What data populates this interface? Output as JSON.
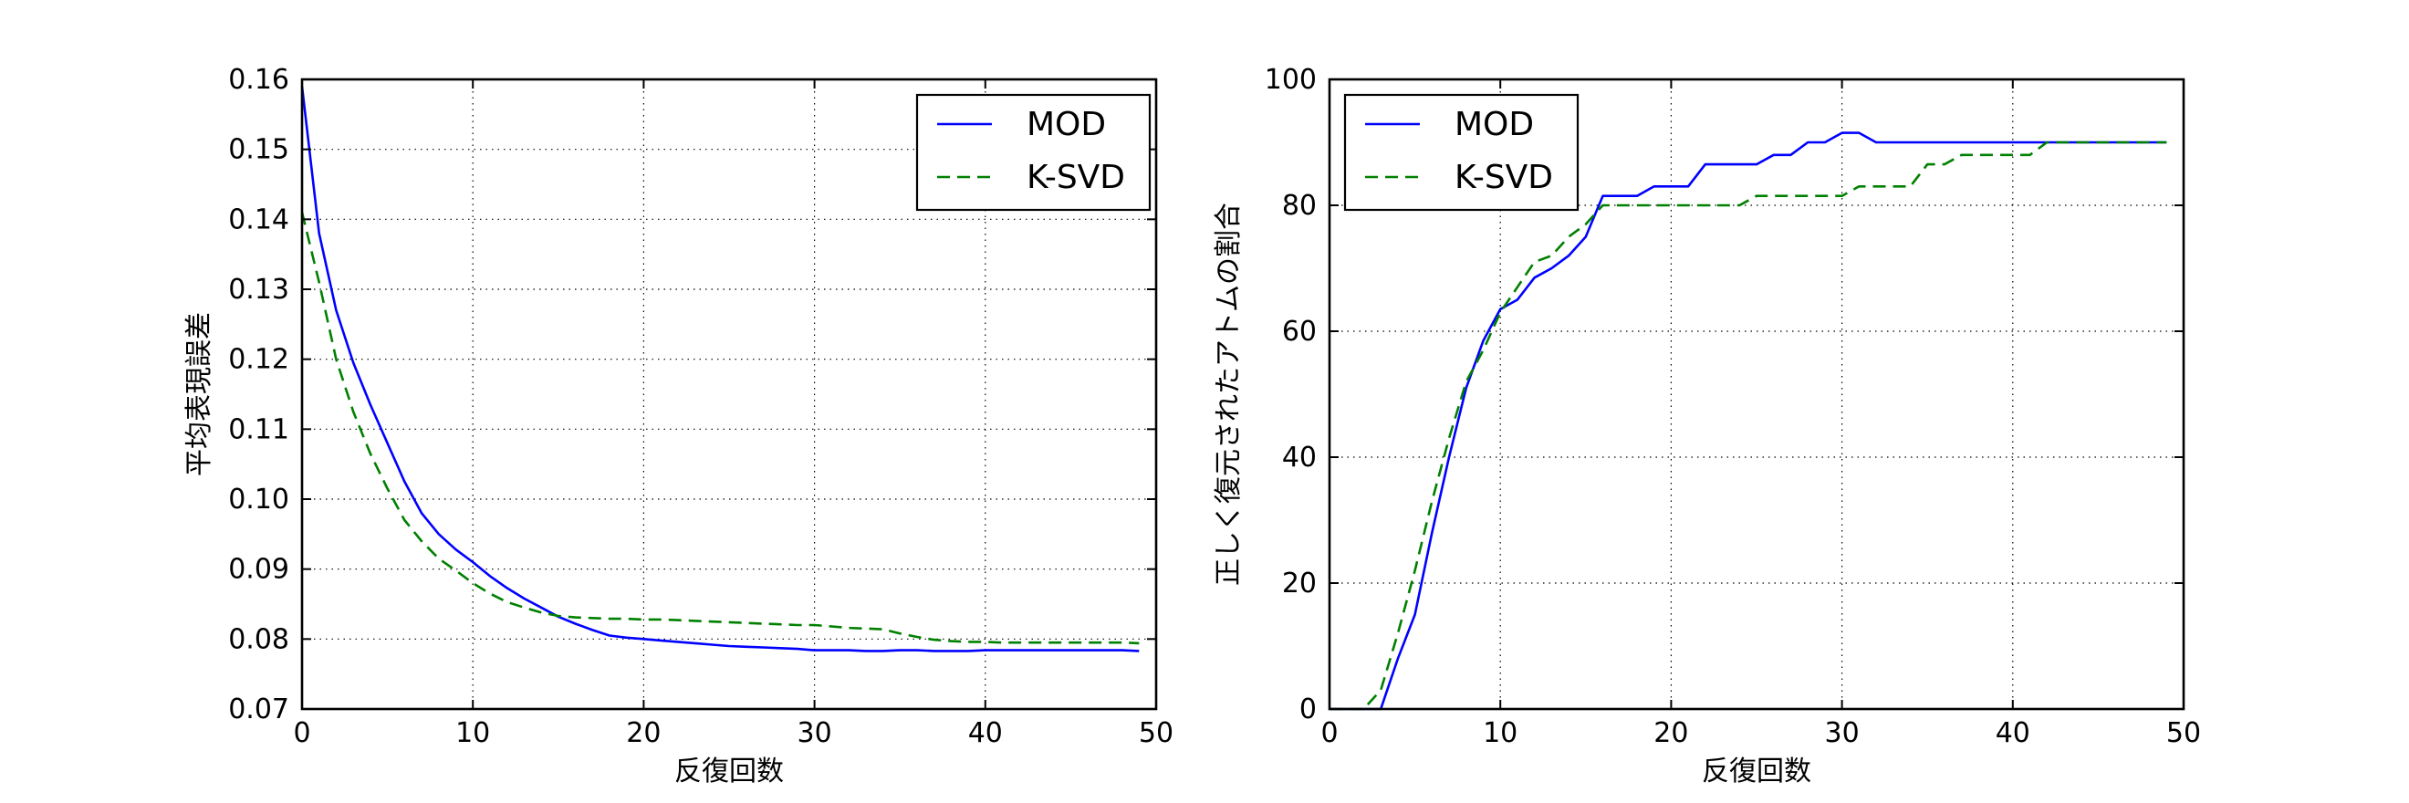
{
  "chart_data": [
    {
      "type": "line",
      "xlabel": "反復回数",
      "ylabel": "平均表現誤差",
      "xlim": [
        0,
        50
      ],
      "ylim": [
        0.07,
        0.16
      ],
      "xticks": [
        "0",
        "10",
        "20",
        "30",
        "40",
        "50"
      ],
      "yticks": [
        "0.07",
        "0.08",
        "0.09",
        "0.10",
        "0.11",
        "0.12",
        "0.13",
        "0.14",
        "0.15",
        "0.16"
      ],
      "grid": true,
      "legend_position": "top-right",
      "series": [
        {
          "name": "MOD",
          "color": "#0000ff",
          "style": "solid",
          "x": [
            0,
            1,
            2,
            3,
            4,
            5,
            6,
            7,
            8,
            9,
            10,
            11,
            12,
            13,
            14,
            15,
            16,
            17,
            18,
            19,
            20,
            21,
            22,
            23,
            24,
            25,
            26,
            27,
            28,
            29,
            30,
            31,
            32,
            33,
            34,
            35,
            36,
            37,
            38,
            39,
            40,
            41,
            42,
            43,
            44,
            45,
            46,
            47,
            48,
            49
          ],
          "y": [
            0.159,
            0.138,
            0.127,
            0.1195,
            0.1135,
            0.108,
            0.1025,
            0.098,
            0.095,
            0.0928,
            0.091,
            0.089,
            0.0873,
            0.0858,
            0.0845,
            0.0832,
            0.0822,
            0.0813,
            0.0805,
            0.0802,
            0.08,
            0.0798,
            0.0796,
            0.0794,
            0.0792,
            0.079,
            0.0789,
            0.0788,
            0.0787,
            0.0786,
            0.0784,
            0.0784,
            0.0784,
            0.0783,
            0.0783,
            0.0784,
            0.0784,
            0.0783,
            0.0783,
            0.0783,
            0.0784,
            0.0784,
            0.0784,
            0.0784,
            0.0784,
            0.0784,
            0.0784,
            0.0784,
            0.0784,
            0.0783
          ]
        },
        {
          "name": "K-SVD",
          "color": "#008000",
          "style": "dashed",
          "x": [
            0,
            1,
            2,
            3,
            4,
            5,
            6,
            7,
            8,
            9,
            10,
            11,
            12,
            13,
            14,
            15,
            16,
            17,
            18,
            19,
            20,
            21,
            22,
            23,
            24,
            25,
            26,
            27,
            28,
            29,
            30,
            31,
            32,
            33,
            34,
            35,
            36,
            37,
            38,
            39,
            40,
            41,
            42,
            43,
            44,
            45,
            46,
            47,
            48,
            49
          ],
          "y": [
            0.141,
            0.131,
            0.12,
            0.1125,
            0.1065,
            0.1015,
            0.097,
            0.094,
            0.0915,
            0.0898,
            0.088,
            0.0865,
            0.0853,
            0.0845,
            0.0838,
            0.0833,
            0.0831,
            0.083,
            0.0829,
            0.0829,
            0.0828,
            0.0828,
            0.0827,
            0.0826,
            0.0825,
            0.0824,
            0.0823,
            0.0822,
            0.0821,
            0.082,
            0.082,
            0.0818,
            0.0816,
            0.0815,
            0.0814,
            0.0808,
            0.0803,
            0.0799,
            0.0797,
            0.0796,
            0.0796,
            0.0795,
            0.0795,
            0.0795,
            0.0795,
            0.0795,
            0.0795,
            0.0795,
            0.0795,
            0.0794
          ]
        }
      ]
    },
    {
      "type": "line",
      "xlabel": "反復回数",
      "ylabel": "正しく復元されたアトムの割合",
      "xlim": [
        0,
        50
      ],
      "ylim": [
        0,
        100
      ],
      "xticks": [
        "0",
        "10",
        "20",
        "30",
        "40",
        "50"
      ],
      "yticks": [
        "0",
        "20",
        "40",
        "60",
        "80",
        "100"
      ],
      "grid": true,
      "legend_position": "top-left",
      "series": [
        {
          "name": "MOD",
          "color": "#0000ff",
          "style": "solid",
          "x": [
            0,
            1,
            2,
            3,
            4,
            5,
            6,
            7,
            8,
            9,
            10,
            11,
            12,
            13,
            14,
            15,
            16,
            17,
            18,
            19,
            20,
            21,
            22,
            23,
            24,
            25,
            26,
            27,
            28,
            29,
            30,
            31,
            32,
            33,
            34,
            35,
            36,
            37,
            38,
            39,
            40,
            41,
            42,
            43,
            44,
            45,
            46,
            47,
            48,
            49
          ],
          "y": [
            0,
            0,
            0,
            0,
            8,
            15,
            28,
            40,
            51,
            58.5,
            63.5,
            65,
            68.5,
            70,
            72,
            75,
            81.5,
            81.5,
            81.5,
            83,
            83,
            83,
            86.5,
            86.5,
            86.5,
            86.5,
            88,
            88,
            90,
            90,
            91.5,
            91.5,
            90,
            90,
            90,
            90,
            90,
            90,
            90,
            90,
            90,
            90,
            90,
            90,
            90,
            90,
            90,
            90,
            90,
            90
          ]
        },
        {
          "name": "K-SVD",
          "color": "#008000",
          "style": "dashed",
          "x": [
            0,
            1,
            2,
            3,
            4,
            5,
            6,
            7,
            8,
            9,
            10,
            11,
            12,
            13,
            14,
            15,
            16,
            17,
            18,
            19,
            20,
            21,
            22,
            23,
            24,
            25,
            26,
            27,
            28,
            29,
            30,
            31,
            32,
            33,
            34,
            35,
            36,
            37,
            38,
            39,
            40,
            41,
            42,
            43,
            44,
            45,
            46,
            47,
            48,
            49
          ],
          "y": [
            0,
            0,
            0,
            3,
            12,
            22,
            33,
            43,
            52,
            57,
            63,
            67,
            71,
            72,
            75,
            77,
            80,
            80,
            80,
            80,
            80,
            80,
            80,
            80,
            80,
            81.5,
            81.5,
            81.5,
            81.5,
            81.5,
            81.5,
            83,
            83,
            83,
            83,
            86.5,
            86.5,
            88,
            88,
            88,
            88,
            88,
            90,
            90,
            90,
            90,
            90,
            90,
            90,
            90
          ]
        }
      ]
    }
  ]
}
